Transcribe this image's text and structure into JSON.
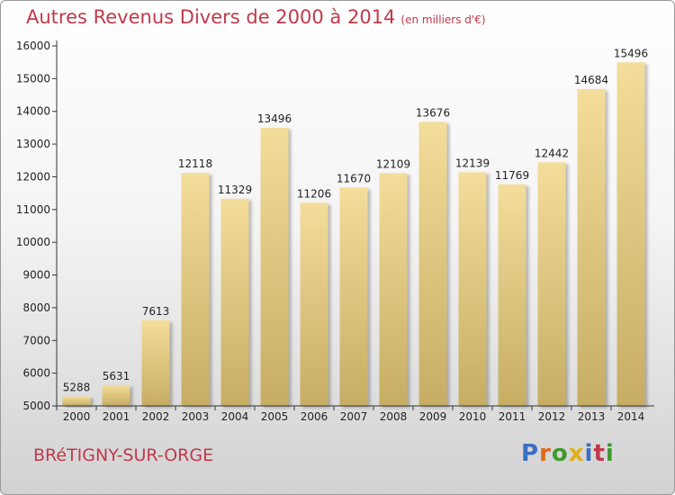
{
  "header": {
    "title": "Autres Revenus Divers de 2000 à 2014",
    "unit": "(en milliers d'€)"
  },
  "footer": {
    "city": "BRéTIGNY-SUR-ORGE",
    "logo": {
      "text": "Proxiti",
      "letter_colors": [
        "#3b6fc4",
        "#e06a1b",
        "#3f9a2e",
        "#e0b01b",
        "#3b6fc4",
        "#c0394b",
        "#3f9a2e"
      ]
    }
  },
  "colors": {
    "title": "#c0394b",
    "bar_top": "#f4dd9a",
    "bar_bottom": "#c7ad63",
    "axis": "#333333",
    "text": "#222222"
  },
  "chart_data": {
    "type": "bar",
    "categories": [
      "2000",
      "2001",
      "2002",
      "2003",
      "2004",
      "2005",
      "2006",
      "2007",
      "2008",
      "2009",
      "2010",
      "2011",
      "2012",
      "2013",
      "2014"
    ],
    "values": [
      5288,
      5631,
      7613,
      12118,
      11329,
      13496,
      11206,
      11670,
      12109,
      13676,
      12139,
      11769,
      12442,
      14684,
      15496
    ],
    "title": "Autres Revenus Divers de 2000 à 2014",
    "xlabel": "",
    "ylabel": "",
    "ylim": [
      5000,
      16000
    ],
    "yticks": [
      5000,
      6000,
      7000,
      8000,
      9000,
      10000,
      11000,
      12000,
      13000,
      14000,
      15000,
      16000
    ],
    "grid": false,
    "data_labels": true
  }
}
